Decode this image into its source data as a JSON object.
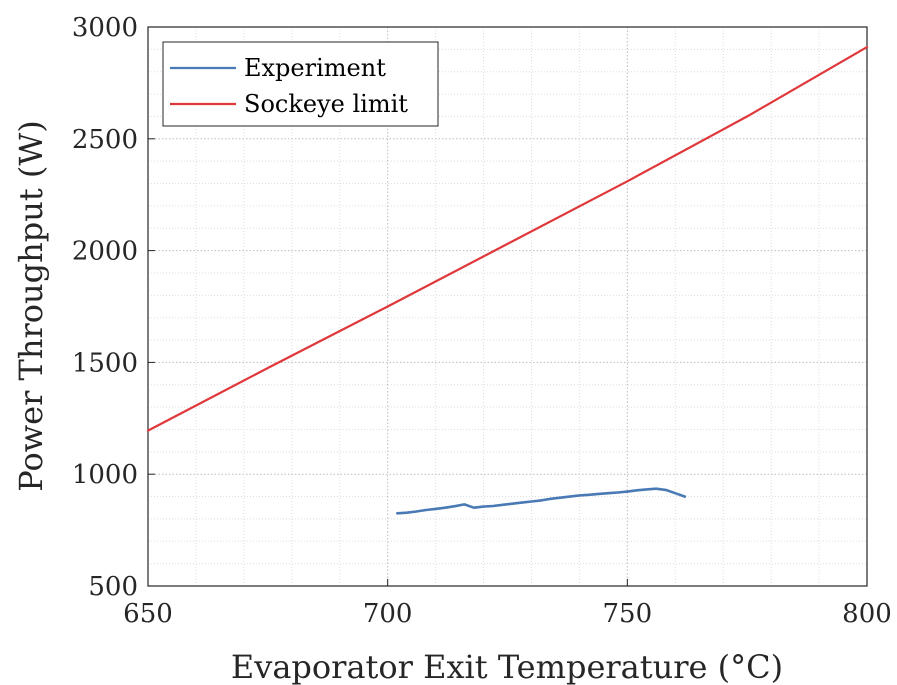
{
  "chart_data": {
    "type": "line",
    "xlabel": "Evaporator Exit Temperature (°C)",
    "ylabel": "Power Throughput (W)",
    "xlim": [
      650,
      800
    ],
    "ylim": [
      500,
      3000
    ],
    "xticks": [
      650,
      700,
      750,
      800
    ],
    "yticks": [
      500,
      1000,
      1500,
      2000,
      2500,
      3000
    ],
    "x_tick_labels": [
      "650",
      "700",
      "750",
      "800"
    ],
    "y_tick_labels": [
      "500",
      "1000",
      "1500",
      "2000",
      "2500",
      "3000"
    ],
    "grid": "major and minor, dotted",
    "legend_position": "top-left",
    "series": [
      {
        "name": "Experiment",
        "color": "#4a7ab5",
        "x": [
          702,
          704,
          706,
          708,
          710,
          712,
          714,
          716,
          718,
          720,
          722,
          724,
          726,
          728,
          730,
          732,
          734,
          736,
          738,
          740,
          742,
          744,
          746,
          748,
          750,
          752,
          754,
          756,
          758,
          760,
          762
        ],
        "y": [
          825,
          828,
          833,
          840,
          845,
          850,
          857,
          865,
          850,
          855,
          858,
          863,
          868,
          873,
          878,
          883,
          890,
          895,
          900,
          905,
          908,
          912,
          915,
          918,
          922,
          928,
          932,
          935,
          930,
          915,
          900
        ]
      },
      {
        "name": "Sockeye limit",
        "color": "#e0373b",
        "x": [
          650,
          675,
          700,
          725,
          750,
          775,
          800
        ],
        "y": [
          1195,
          1475,
          1750,
          2030,
          2310,
          2600,
          2910
        ]
      }
    ]
  }
}
